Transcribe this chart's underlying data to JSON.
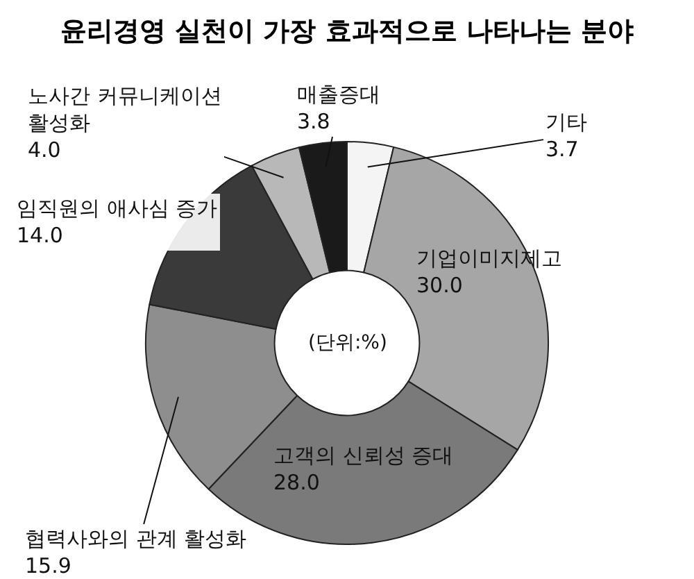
{
  "chart_data": {
    "type": "donut",
    "title": "윤리경영 실천이 가장 효과적으로 나타나는 분야",
    "categories": [
      "기타",
      "기업이미지제고",
      "고객의 신뢰성 증대",
      "협력사와의 관계 활성화",
      "임직원의 애사심 증가",
      "노사간 커뮤니케이션 활성화",
      "매출증대"
    ],
    "values": [
      3.7,
      30.0,
      28.0,
      15.9,
      14.0,
      4.0,
      3.8
    ],
    "value_labels": [
      "3.7",
      "30.0",
      "28.0",
      "15.9",
      "14.0",
      "4.0",
      "3.8"
    ],
    "colors": [
      "#f4f4f4",
      "#a6a6a6",
      "#7a7a7a",
      "#8e8e8e",
      "#3a3a3a",
      "#b8b8b8",
      "#1a1a1a"
    ],
    "annotations": [
      "(단위:%)"
    ],
    "legend": false
  }
}
